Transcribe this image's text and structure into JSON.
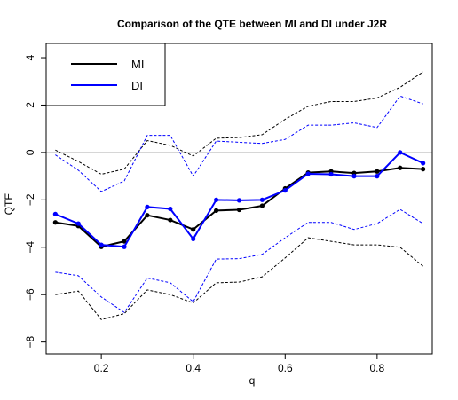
{
  "chart_data": {
    "type": "line",
    "title": "Comparison of the QTE between MI and DI under J2R",
    "xlabel": "q",
    "ylabel": "QTE",
    "xlim": [
      0.08,
      0.92
    ],
    "ylim": [
      -8.5,
      4.6
    ],
    "xticks": [
      0.2,
      0.4,
      0.6,
      0.8
    ],
    "xtick_labels": [
      "0.2",
      "0.4",
      "0.6",
      "0.8"
    ],
    "yticks": [
      -8,
      -6,
      -4,
      -2,
      0,
      2,
      4
    ],
    "ytick_labels": [
      "−8",
      "−6",
      "−4",
      "−2",
      "0",
      "2",
      "4"
    ],
    "reference_line": {
      "y": 0,
      "color": "#bebebe"
    },
    "legend": {
      "position": "top-left",
      "entries": [
        "MI",
        "DI"
      ]
    },
    "grid": false,
    "x": [
      0.1,
      0.15,
      0.2,
      0.25,
      0.3,
      0.35,
      0.4,
      0.45,
      0.5,
      0.55,
      0.6,
      0.65,
      0.7,
      0.75,
      0.8,
      0.85,
      0.9
    ],
    "series": [
      {
        "name": "MI",
        "color": "#000000",
        "values": [
          -2.95,
          -3.1,
          -3.98,
          -3.75,
          -2.65,
          -2.85,
          -3.25,
          -2.45,
          -2.42,
          -2.25,
          -1.52,
          -0.85,
          -0.8,
          -0.87,
          -0.8,
          -0.65,
          -0.7
        ],
        "lower": [
          -6.0,
          -5.85,
          -7.05,
          -6.8,
          -5.8,
          -6.0,
          -6.35,
          -5.5,
          -5.47,
          -5.25,
          -4.45,
          -3.6,
          -3.75,
          -3.9,
          -3.9,
          -4.0,
          -4.8
        ],
        "upper": [
          0.1,
          -0.38,
          -0.92,
          -0.7,
          0.5,
          0.3,
          -0.15,
          0.6,
          0.63,
          0.75,
          1.4,
          1.95,
          2.15,
          2.15,
          2.3,
          2.75,
          3.4
        ]
      },
      {
        "name": "DI",
        "color": "#0000ff",
        "values": [
          -2.6,
          -3.0,
          -3.9,
          -3.98,
          -2.3,
          -2.38,
          -3.65,
          -2.0,
          -2.02,
          -2.0,
          -1.6,
          -0.9,
          -0.92,
          -1.0,
          -1.0,
          0.0,
          -0.45
        ],
        "lower": [
          -5.05,
          -5.2,
          -6.1,
          -6.75,
          -5.3,
          -5.5,
          -6.3,
          -4.5,
          -4.48,
          -4.3,
          -3.6,
          -2.95,
          -2.95,
          -3.25,
          -3.0,
          -2.4,
          -3.0
        ],
        "upper": [
          -0.1,
          -0.75,
          -1.65,
          -1.2,
          0.72,
          0.72,
          -1.0,
          0.48,
          0.43,
          0.38,
          0.55,
          1.15,
          1.15,
          1.25,
          1.05,
          2.38,
          2.05
        ]
      }
    ]
  }
}
